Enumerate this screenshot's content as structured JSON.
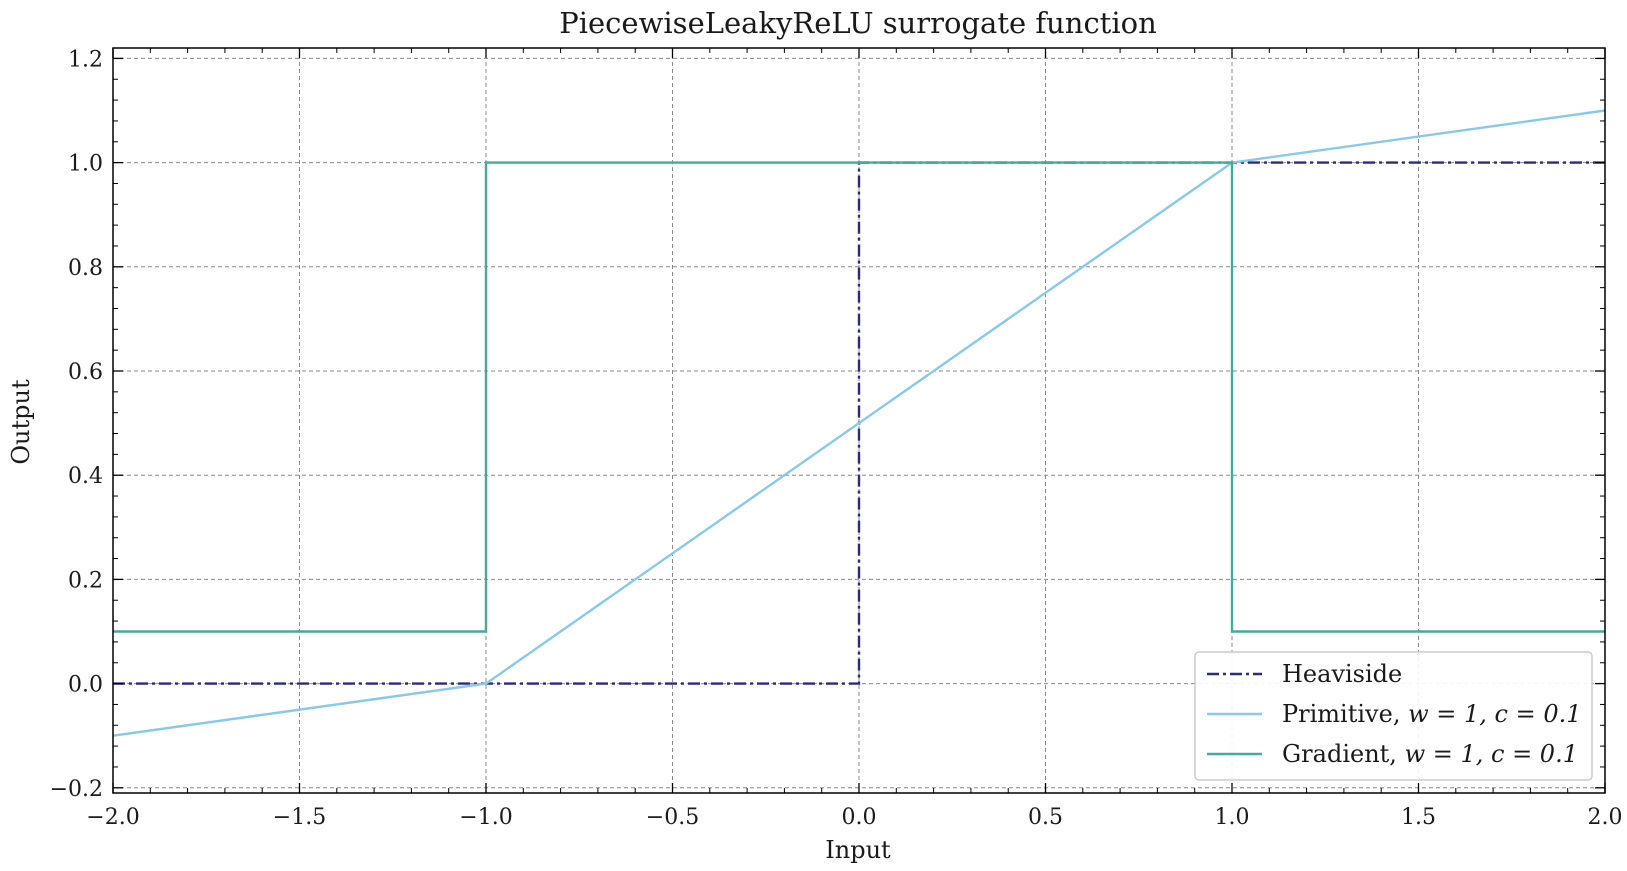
{
  "chart_data": {
    "type": "line",
    "title": "PiecewiseLeakyReLU surrogate function",
    "xlabel": "Input",
    "ylabel": "Output",
    "xlim": [
      -2.0,
      2.0
    ],
    "ylim": [
      -0.21,
      1.22
    ],
    "xticks": [
      -2.0,
      -1.5,
      -1.0,
      -0.5,
      0.0,
      0.5,
      1.0,
      1.5,
      2.0
    ],
    "yticks": [
      -0.2,
      0.0,
      0.2,
      0.4,
      0.6,
      0.8,
      1.0,
      1.2
    ],
    "xtick_labels": [
      "−2.0",
      "−1.5",
      "−1.0",
      "−0.5",
      "0.0",
      "0.5",
      "1.0",
      "1.5",
      "2.0"
    ],
    "ytick_labels": [
      "−0.2",
      "0.0",
      "0.2",
      "0.4",
      "0.6",
      "0.8",
      "1.0",
      "1.2"
    ],
    "grid": true,
    "legend_position": "lower-right",
    "series": [
      {
        "name": "Heaviside",
        "label_plain": "Heaviside",
        "label_math": "",
        "color": "#2b2a7b",
        "style": "dashdot",
        "x": [
          -2.0,
          0.0,
          0.0,
          2.0
        ],
        "y": [
          0.0,
          0.0,
          1.0,
          1.0
        ]
      },
      {
        "name": "Primitive, w = 1, c = 0.1",
        "label_plain": "Primitive, ",
        "label_math": "w = 1, c = 0.1",
        "color": "#88c9ea",
        "style": "solid",
        "x": [
          -2.0,
          -1.0,
          1.0,
          2.0
        ],
        "y": [
          -0.1,
          0.0,
          1.0,
          1.1
        ]
      },
      {
        "name": "Gradient, w = 1, c = 0.1",
        "label_plain": "Gradient, ",
        "label_math": "w = 1, c = 0.1",
        "color": "#44aa99",
        "style": "solid",
        "x": [
          -2.0,
          -1.0,
          -1.0,
          1.0,
          1.0,
          2.0
        ],
        "y": [
          0.1,
          0.1,
          1.0,
          1.0,
          0.1,
          0.1
        ]
      }
    ]
  }
}
